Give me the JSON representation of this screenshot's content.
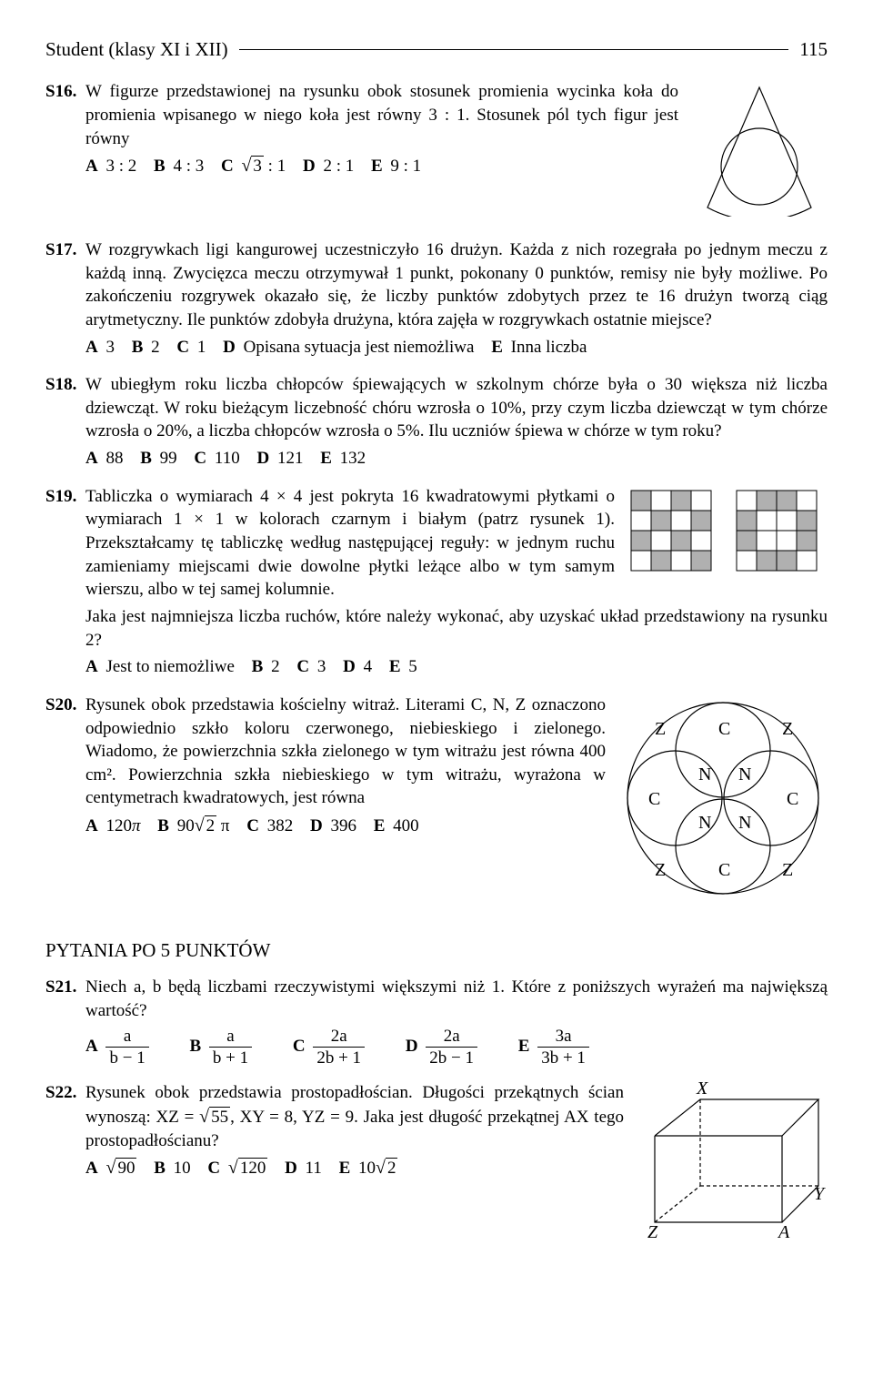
{
  "header": {
    "title": "Student (klasy XI i XII)",
    "page_number": "115"
  },
  "problems": {
    "s16": {
      "label": "S16.",
      "text1": "W figurze przedstawionej na rysunku obok stosunek promienia wycinka koła do promienia wpisanego w niego koła jest równy 3 : 1. Stosunek pól tych figur jest równy",
      "optA": "3 : 2",
      "optB": "4 : 3",
      "optC_pre": "",
      "optC_sqrt": "3",
      "optC_post": " : 1",
      "optD": "2 : 1",
      "optE": "9 : 1",
      "figure": {
        "stroke": "#000000",
        "fill": "#ffffff",
        "size": 150
      }
    },
    "s17": {
      "label": "S17.",
      "text1": "W rozgrywkach ligi kangurowej uczestniczyło 16 drużyn. Każda z nich rozegrała po jednym meczu z każdą inną. Zwycięzca meczu otrzymywał 1 punkt, pokonany 0 punktów, remisy nie były możliwe. Po zakończeniu rozgrywek okazało się, że liczby punktów zdobytych przez te 16 drużyn tworzą ciąg arytmetyczny. Ile punktów zdobyła drużyna, która zajęła w rozgrywkach ostatnie miejsce?",
      "optA": "3",
      "optB": "2",
      "optC": "1",
      "optD": "Opisana sytuacja jest niemożliwa",
      "optE": "Inna liczba"
    },
    "s18": {
      "label": "S18.",
      "text1": "W ubiegłym roku liczba chłopców śpiewających w szkolnym chórze była o 30 większa niż liczba dziewcząt. W roku bieżącym liczebność chóru wzrosła o 10%, przy czym liczba dziewcząt w tym chórze wzrosła o 20%, a liczba chłopców wzrosła o 5%. Ilu uczniów śpiewa w chórze w tym roku?",
      "optA": "88",
      "optB": "99",
      "optC": "110",
      "optD": "121",
      "optE": "132"
    },
    "s19": {
      "label": "S19.",
      "text1": "Tabliczka o wymiarach 4 × 4 jest pokryta 16 kwadratowymi płytkami o wymiarach 1 × 1 w kolorach czarnym i białym (patrz rysunek 1). Przekształcamy tę tabliczkę według następującej reguły: w jednym ruchu zamieniamy miejscami dwie dowolne płytki leżące albo w tym samym wierszu, albo w tej samej kolumnie.",
      "text2": "Jaka jest najmniejsza liczba ruchów, które należy wykonać, aby uzyskać układ przedstawiony na rysunku 2?",
      "optA": "Jest to niemożliwe",
      "optB": "2",
      "optC": "3",
      "optD": "4",
      "optE": "5",
      "figure": {
        "cell_dark": "#b0b0b0",
        "cell_light": "#ffffff",
        "stroke": "#000000",
        "grid1": [
          [
            1,
            0,
            1,
            0
          ],
          [
            0,
            1,
            0,
            1
          ],
          [
            1,
            0,
            1,
            0
          ],
          [
            0,
            1,
            0,
            1
          ]
        ],
        "grid2": [
          [
            0,
            1,
            1,
            0
          ],
          [
            1,
            0,
            0,
            1
          ],
          [
            1,
            0,
            0,
            1
          ],
          [
            0,
            1,
            1,
            0
          ]
        ]
      }
    },
    "s20": {
      "label": "S20.",
      "text1": "Rysunek obok przedstawia kościelny witraż. Literami C, N, Z oznaczono odpowiednio szkło koloru czerwonego, niebieskiego i zielonego. Wiadomo, że powierzchnia szkła zielonego w tym witrażu jest równa 400 cm². Powierzchnia szkła niebieskiego w tym witrażu, wyrażona w centymetrach kwadratowych, jest równa",
      "optA_pre": "120",
      "optA_sym": "π",
      "optB_pre": "90",
      "optB_sqrt": "2",
      "optB_post": " π",
      "optC": "382",
      "optD": "396",
      "optE": "400",
      "figure": {
        "stroke": "#000000",
        "labels": {
          "C": "C",
          "N": "N",
          "Z": "Z"
        }
      }
    },
    "section5": "PYTANIA PO 5 PUNKTÓW",
    "s21": {
      "label": "S21.",
      "text1": "Niech a, b będą liczbami rzeczywistymi większymi niż 1. Które z poniższych wyrażeń ma największą wartość?",
      "A": {
        "num": "a",
        "den": "b − 1"
      },
      "B": {
        "num": "a",
        "den": "b + 1"
      },
      "C": {
        "num": "2a",
        "den": "2b + 1"
      },
      "D": {
        "num": "2a",
        "den": "2b − 1"
      },
      "E": {
        "num": "3a",
        "den": "3b + 1"
      }
    },
    "s22": {
      "label": "S22.",
      "text1_a": "Rysunek obok przedstawia prostopadłościan. Długości przekątnych ścian wynoszą: XZ = ",
      "text1_b": ", XY = 8, YZ = 9. Jaka jest długość przekątnej AX tego prostopadłościanu?",
      "xz_sqrt": "55",
      "optA_sqrt": "90",
      "optB": "10",
      "optC_sqrt": "120",
      "optD": "11",
      "optE_pre": "10",
      "optE_sqrt": "2",
      "figure": {
        "stroke": "#000000",
        "labels": {
          "X": "X",
          "Y": "Y",
          "Z": "Z",
          "A": "A"
        }
      }
    }
  }
}
